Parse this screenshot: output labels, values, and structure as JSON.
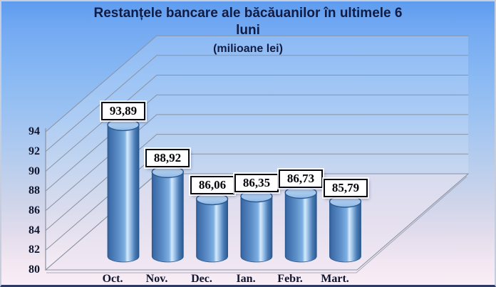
{
  "header": {
    "title_line1": "Restanțele bancare ale băcăuanilor în ultimele 6",
    "title_line2": "luni",
    "subtitle": "(milioane lei)"
  },
  "chart_data": {
    "type": "bar",
    "style": "3d-cylinder",
    "title": "Restanțele bancare ale băcăuanilor în ultimele 6 luni",
    "subtitle": "(milioane lei)",
    "categories": [
      "Oct.",
      "Nov.",
      "Dec.",
      "Ian.",
      "Febr.",
      "Mart."
    ],
    "values": [
      93.89,
      88.92,
      86.06,
      86.35,
      86.73,
      85.79
    ],
    "value_labels": [
      "93,89",
      "88,92",
      "86,06",
      "86,35",
      "86,73",
      "85,79"
    ],
    "xlabel": "",
    "ylabel": "",
    "ylim": [
      80,
      94
    ],
    "yticks": [
      80,
      82,
      84,
      86,
      88,
      90,
      92,
      94
    ],
    "grid": true,
    "legend": false,
    "decimal_separator": ","
  },
  "colors": {
    "title_text": "#111c44",
    "axis_text": "#10162e",
    "grid_line": "#8a92a2",
    "bar_edge": "#2a5890",
    "bar_body": "#5d8fc9",
    "bar_highlight": "#d6e9fb",
    "bar_top": "#a5c8ea",
    "label_box_bg": "#ffffff",
    "label_box_border": "#0a0a14",
    "bg_top": "#5e9cf0",
    "bg_middle": "#a9c9f0",
    "bg_bottom": "#f9eef6"
  }
}
